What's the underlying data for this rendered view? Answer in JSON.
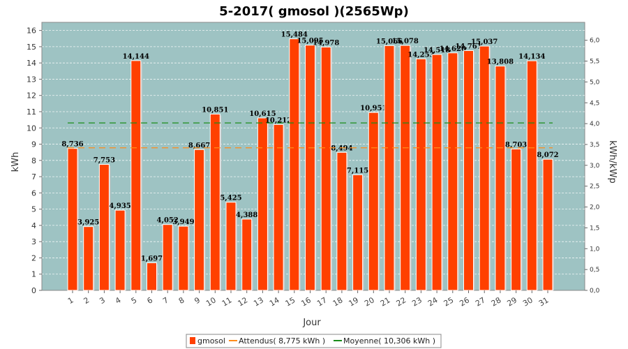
{
  "chart_data": {
    "type": "bar",
    "title": "5-2017( gmosol )(2565Wp)",
    "xlabel": "Jour",
    "ylabel": "kWh",
    "ylabel_right": "kWh/kWp",
    "ylim": [
      0,
      16.5
    ],
    "ylim_right": [
      0,
      6.43
    ],
    "yticks": [
      0,
      1,
      2,
      3,
      4,
      5,
      6,
      7,
      8,
      9,
      10,
      11,
      12,
      13,
      14,
      15,
      16
    ],
    "yticks_right": [
      "0,0",
      "0,5",
      "1,0",
      "1,5",
      "2,0",
      "2,5",
      "3,0",
      "3,5",
      "4,0",
      "4,5",
      "5,0",
      "5,5",
      "6,0"
    ],
    "categories": [
      "1",
      "2",
      "3",
      "4",
      "5",
      "6",
      "7",
      "8",
      "9",
      "10",
      "11",
      "12",
      "13",
      "14",
      "15",
      "16",
      "17",
      "18",
      "19",
      "20",
      "21",
      "22",
      "23",
      "24",
      "25",
      "26",
      "27",
      "28",
      "29",
      "30",
      "31"
    ],
    "series": [
      {
        "name": "gmosol",
        "values": [
          8.736,
          3.925,
          7.753,
          4.935,
          14.144,
          1.697,
          4.052,
          3.949,
          8.667,
          10.851,
          5.425,
          4.388,
          10.615,
          10.212,
          15.484,
          15.095,
          14.978,
          8.494,
          7.115,
          10.951,
          15.066,
          15.078,
          14.253,
          14.518,
          14.62,
          14.761,
          15.037,
          13.808,
          8.703,
          14.134,
          8.072
        ],
        "labels": [
          "8,736",
          "3,925",
          "7,753",
          "4,935",
          "14,144",
          "1,697",
          "4,052",
          "3,949",
          "8,667",
          "10,851",
          "5,425",
          "4,388",
          "10,615",
          "10,212",
          "15,484",
          "15,095",
          "14,978",
          "8,494",
          "7,115",
          "10,951",
          "15,066",
          "15,078",
          "14,253",
          "14,518",
          "14,620",
          "14,761",
          "15,037",
          "13,808",
          "8,703",
          "14,134",
          "8,072"
        ]
      }
    ],
    "lines": [
      {
        "name": "Attendus( 8,775 kWh )",
        "value": 8.775
      },
      {
        "name": "Moyenne( 10,306 kWh )",
        "value": 10.306
      }
    ],
    "grid": true,
    "legend_position": "bottom",
    "colors": {
      "plot_bg": "#9ec3c3",
      "bar": "#ff4000",
      "bar_shadow": "#c8c8c8",
      "attendus": "#ff8c1a",
      "moyenne": "#1a8c1a",
      "grid": "#ffffff"
    }
  }
}
